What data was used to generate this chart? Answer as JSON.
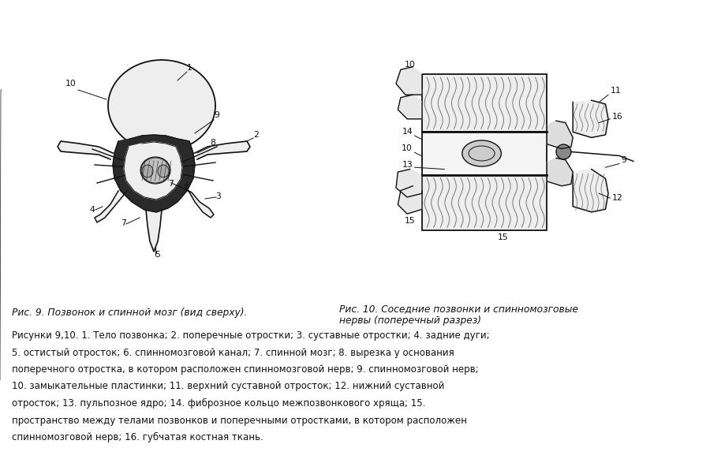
{
  "bg_color": "#ffffff",
  "fig_width": 9.0,
  "fig_height": 5.82,
  "dpi": 100,
  "caption1": "Рис. 9. Позвонок и спинной мозг (вид сверху).",
  "caption2": "Рис. 10. Соседние позвонки и спинномозговые\nнервы (поперечный разрез)",
  "desc_line1": "Рисунки 9,10. 1. Тело позвонка; 2. поперечные отростки; 3. суставные отростки; 4. задние дуги;",
  "desc_line2": "5. остистый отросток; 6. спинномозговой канал; 7. спинной мозг; 8. вырезка у основания",
  "desc_line3": "поперечного отростка, в котором расположен спинномозговой нерв; 9. спинномозговой нерв;",
  "desc_line4": "10. замыкательные пластинки; 11. верхний суставной отросток; 12. нижний суставной",
  "desc_line5": "отросток; 13. пульпозное ядро; 14. фиброзное кольцо межпозвонкового хряща; 15.",
  "desc_line6": "пространство между телами позвонков и поперечными отростками, в котором расположен",
  "desc_line7": "спинномозговой нерв; 16. губчатая костная ткань.",
  "text_color": "#111111",
  "line_color": "#111111",
  "dark_fill": "#2a2a2a",
  "mid_fill": "#888888",
  "light_fill": "#dddddd",
  "lighter_fill": "#eeeeee"
}
